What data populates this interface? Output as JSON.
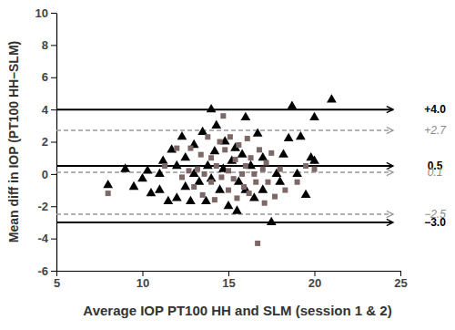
{
  "chart_data": {
    "type": "scatter",
    "x_label": "Average IOP PT100 HH and SLM (session 1 & 2)",
    "y_label": "Mean diff in IOP (PT100 HH–SLM)",
    "xlim": [
      5,
      25
    ],
    "xticks": [
      5,
      10,
      15,
      20,
      25
    ],
    "ylim": [
      -6,
      10
    ],
    "yticks": [
      -6,
      -4,
      -2,
      0,
      2,
      4,
      6,
      8,
      10
    ],
    "grid": false,
    "series": [
      {
        "color": "#000000",
        "marker": "triangle",
        "x": [
          8,
          9,
          9.5,
          10,
          10.3,
          10.5,
          11,
          11,
          11.2,
          11.5,
          11.7,
          12,
          12,
          12.3,
          12.5,
          12.5,
          12.8,
          13,
          13,
          13.3,
          13.5,
          13.7,
          13.8,
          14,
          14,
          14.2,
          14.3,
          14.5,
          14.7,
          14.8,
          15,
          15.2,
          15.4,
          15.5,
          15.6,
          15.8,
          16,
          16,
          16.3,
          16.5,
          16.7,
          17,
          17,
          17.5,
          17.8,
          18,
          18.2,
          18.5,
          18.7,
          19,
          19.2,
          19.5,
          19.8,
          20,
          20,
          21
        ],
        "values": [
          -0.7,
          0.3,
          -0.8,
          -0.3,
          0.2,
          -1.2,
          0,
          -1,
          0.8,
          -1.7,
          1.5,
          -1.5,
          0.5,
          2.3,
          -0.8,
          1,
          -1.7,
          0,
          1.8,
          -0.5,
          2.6,
          -1.7,
          0.5,
          4,
          -0.3,
          1.4,
          3,
          -1,
          0.3,
          2,
          -2,
          0.8,
          1.6,
          -2.3,
          -0.5,
          1.2,
          -1,
          3.5,
          0.5,
          -1.5,
          2.5,
          -1,
          1,
          -3,
          0,
          -0.5,
          1.2,
          2.2,
          4.2,
          0,
          2.3,
          -1.3,
          1,
          3.5,
          0.8,
          4.6
        ]
      },
      {
        "color": "#7d6868",
        "marker": "square",
        "x": [
          8,
          11.3,
          12,
          12.3,
          12.7,
          12.8,
          13,
          13.2,
          13.4,
          13.5,
          13.6,
          13.8,
          14,
          14,
          14.2,
          14.3,
          14.5,
          14.6,
          14.7,
          14.8,
          15,
          15,
          15.1,
          15.3,
          15.4,
          15.5,
          15.6,
          15.8,
          15.9,
          16,
          16.1,
          16.2,
          16.3,
          16.5,
          16.6,
          16.7,
          16.8,
          17,
          17.1,
          17.2,
          17.3,
          17.5,
          17.7,
          18,
          18.3,
          19,
          19.5,
          20
        ],
        "values": [
          -1.2,
          0.5,
          1.6,
          -0.2,
          0.2,
          1.6,
          -0.8,
          0.3,
          1.2,
          -1.3,
          0,
          2.3,
          -0.5,
          1,
          -1.6,
          0.5,
          2,
          -0.2,
          3.6,
          1.5,
          0.2,
          -1,
          2.3,
          -0.3,
          0.9,
          -1.5,
          1.8,
          0,
          -0.8,
          0.5,
          2.2,
          -1.2,
          1,
          0,
          -0.5,
          -4.3,
          1.5,
          0.3,
          -1.8,
          0.7,
          -0.5,
          1.3,
          -1.4,
          0.3,
          -1,
          -0.5,
          0.5,
          0.3
        ]
      }
    ],
    "annotations": [
      {
        "value": 4.0,
        "label": "+4.0",
        "line_style": "solid",
        "color": "#000000"
      },
      {
        "value": 2.7,
        "label": "+2.7",
        "line_style": "dashed",
        "color": "#999999"
      },
      {
        "value": 0.5,
        "label": "0.5",
        "line_style": "solid",
        "color": "#000000"
      },
      {
        "value": 0.1,
        "label": "0.1",
        "line_style": "dashed",
        "color": "#999999"
      },
      {
        "value": -2.5,
        "label": "−2.5",
        "line_style": "dashed",
        "color": "#999999"
      },
      {
        "value": -3.0,
        "label": "−3.0",
        "line_style": "solid",
        "color": "#000000"
      }
    ]
  }
}
